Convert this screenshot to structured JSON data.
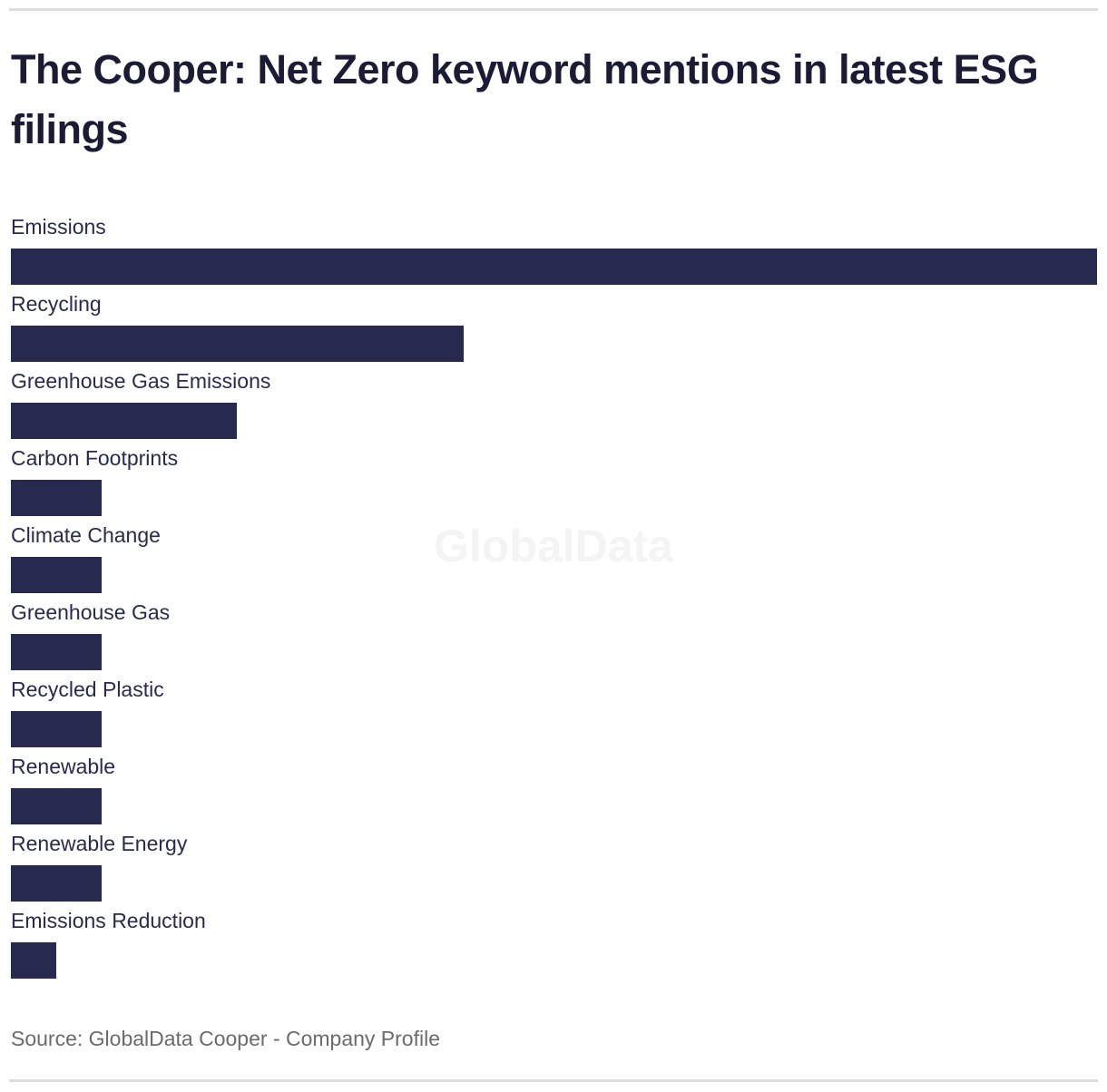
{
  "page": {
    "watermark": "GlobalData",
    "source": "Source: GlobalData Cooper - Company Profile"
  },
  "colors": {
    "bar": "#272a4e",
    "title_text": "#1b1b35",
    "label_text": "#282b4d",
    "source_text": "#6b6b6b",
    "divider": "#dcdcdc",
    "watermark": "#f4f4f4",
    "background": "#ffffff"
  },
  "chart_data": {
    "type": "bar",
    "orientation": "horizontal",
    "title": "The Cooper: Net Zero keyword mentions in latest ESG filings",
    "xlabel": "",
    "ylabel": "",
    "categories": [
      "Emissions",
      "Recycling",
      "Greenhouse Gas Emissions",
      "Carbon Footprints",
      "Climate Change",
      "Greenhouse Gas",
      "Recycled Plastic",
      "Renewable",
      "Renewable Energy",
      "Emissions Reduction"
    ],
    "values": [
      24,
      10,
      5,
      2,
      2,
      2,
      2,
      2,
      2,
      1
    ],
    "value_precision": "estimated from relative bar lengths; chart displays no numeric axis or data labels",
    "xlim": [
      0,
      24
    ],
    "grid": false,
    "legend": false,
    "bar_color": "#272a4e"
  }
}
